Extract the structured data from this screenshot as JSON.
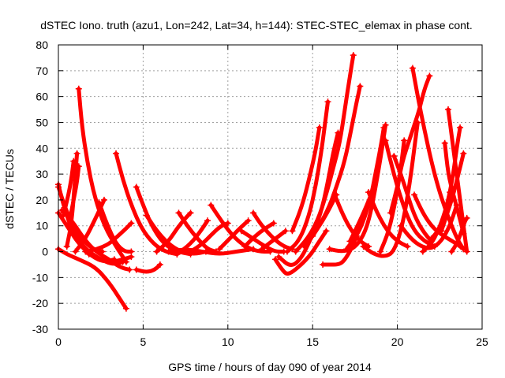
{
  "chart_data": {
    "type": "scatter",
    "title": "dSTEC Iono. truth (azu1, Lon=242, Lat=34, h=144): STEC-STEC_elemax in phase cont.",
    "xlabel": "GPS time / hours of day 090 of year 2014",
    "ylabel": "dSTEC  / TECUs",
    "xlim": [
      0,
      25
    ],
    "ylim": [
      -30,
      80
    ],
    "xticks": [
      0,
      5,
      10,
      15,
      20,
      25
    ],
    "yticks": [
      -30,
      -20,
      -10,
      0,
      10,
      20,
      30,
      40,
      50,
      60,
      70,
      80
    ],
    "grid": true,
    "series_color": "#ff0000",
    "marker": "plus",
    "arcs": [
      [
        [
          0.0,
          26
        ],
        [
          0.3,
          18
        ],
        [
          0.7,
          10
        ],
        [
          1.2,
          4
        ],
        [
          1.8,
          0
        ],
        [
          2.5,
          -3
        ],
        [
          3.2,
          -5
        ],
        [
          3.8,
          -4
        ]
      ],
      [
        [
          0.0,
          15
        ],
        [
          0.5,
          10
        ],
        [
          1.2,
          3
        ],
        [
          2.0,
          -2
        ],
        [
          2.7,
          -4
        ],
        [
          3.3,
          -3
        ]
      ],
      [
        [
          0.0,
          25
        ],
        [
          0.5,
          15
        ],
        [
          1.2,
          6
        ],
        [
          2.0,
          1
        ],
        [
          2.6,
          0
        ]
      ],
      [
        [
          0.0,
          1
        ],
        [
          0.5,
          -1
        ],
        [
          1.2,
          -3
        ],
        [
          2.2,
          -6
        ],
        [
          3.0,
          -12
        ],
        [
          3.6,
          -18
        ],
        [
          4.0,
          -22
        ]
      ],
      [
        [
          0.2,
          16
        ],
        [
          0.8,
          12
        ],
        [
          1.5,
          5
        ],
        [
          2.2,
          0
        ],
        [
          3.0,
          -3
        ],
        [
          3.6,
          -6
        ],
        [
          4.2,
          -7
        ]
      ],
      [
        [
          0.5,
          2
        ],
        [
          0.8,
          12
        ],
        [
          1.0,
          30
        ],
        [
          1.1,
          38
        ]
      ],
      [
        [
          0.3,
          14
        ],
        [
          0.7,
          25
        ],
        [
          0.9,
          35
        ]
      ],
      [
        [
          0.6,
          10
        ],
        [
          0.9,
          20
        ],
        [
          1.1,
          27
        ],
        [
          1.2,
          33
        ]
      ],
      [
        [
          1.2,
          63
        ],
        [
          1.4,
          48
        ],
        [
          1.7,
          35
        ],
        [
          2.1,
          22
        ],
        [
          2.7,
          10
        ],
        [
          3.4,
          2
        ],
        [
          4.0,
          -4
        ]
      ],
      [
        [
          1.0,
          0
        ],
        [
          1.6,
          5
        ],
        [
          2.2,
          13
        ],
        [
          2.7,
          20
        ]
      ],
      [
        [
          2.4,
          19
        ],
        [
          2.9,
          10
        ],
        [
          3.4,
          3
        ],
        [
          3.9,
          0
        ],
        [
          4.3,
          0
        ]
      ],
      [
        [
          1.6,
          0
        ],
        [
          2.3,
          1
        ],
        [
          3.0,
          3
        ],
        [
          3.5,
          6
        ],
        [
          4.0,
          9
        ],
        [
          4.3,
          11
        ]
      ],
      [
        [
          1.8,
          -1
        ],
        [
          2.5,
          -3
        ],
        [
          3.2,
          -4
        ],
        [
          3.8,
          -3
        ],
        [
          4.3,
          -2
        ]
      ],
      [
        [
          3.4,
          38
        ],
        [
          3.8,
          28
        ],
        [
          4.3,
          18
        ],
        [
          4.9,
          9
        ],
        [
          5.6,
          3
        ],
        [
          6.3,
          0
        ],
        [
          7.0,
          -1
        ]
      ],
      [
        [
          4.6,
          25
        ],
        [
          5.0,
          18
        ],
        [
          5.5,
          10
        ],
        [
          6.2,
          3
        ],
        [
          7.0,
          0
        ],
        [
          7.8,
          -1
        ]
      ],
      [
        [
          4.6,
          -7
        ],
        [
          5.2,
          -8
        ],
        [
          5.7,
          -7
        ],
        [
          6.0,
          -5
        ]
      ],
      [
        [
          5.2,
          14
        ],
        [
          5.8,
          8
        ],
        [
          6.5,
          3
        ],
        [
          7.2,
          0
        ],
        [
          8.0,
          -1
        ],
        [
          8.7,
          0
        ]
      ],
      [
        [
          5.8,
          0
        ],
        [
          6.5,
          4
        ],
        [
          7.0,
          9
        ],
        [
          7.5,
          13
        ],
        [
          7.8,
          15
        ]
      ],
      [
        [
          7.1,
          15
        ],
        [
          7.6,
          10
        ],
        [
          8.2,
          5
        ],
        [
          8.8,
          1
        ],
        [
          9.3,
          0
        ]
      ],
      [
        [
          7.0,
          -1
        ],
        [
          7.8,
          3
        ],
        [
          8.4,
          8
        ],
        [
          8.8,
          12
        ]
      ],
      [
        [
          6.5,
          0
        ],
        [
          7.5,
          1
        ],
        [
          8.5,
          0
        ],
        [
          9.5,
          -1
        ],
        [
          10.5,
          0
        ],
        [
          11.5,
          1
        ]
      ],
      [
        [
          7.8,
          0
        ],
        [
          8.5,
          3
        ],
        [
          9.1,
          7
        ],
        [
          9.6,
          10
        ],
        [
          10.0,
          11
        ]
      ],
      [
        [
          9.0,
          18
        ],
        [
          9.6,
          12
        ],
        [
          10.3,
          6
        ],
        [
          11.0,
          2
        ],
        [
          11.8,
          0
        ],
        [
          12.5,
          0
        ]
      ],
      [
        [
          9.5,
          1
        ],
        [
          10.1,
          5
        ],
        [
          10.7,
          9
        ],
        [
          11.2,
          12
        ]
      ],
      [
        [
          11.0,
          2
        ],
        [
          11.6,
          6
        ],
        [
          12.2,
          9
        ],
        [
          12.7,
          11
        ]
      ],
      [
        [
          11.5,
          15
        ],
        [
          12.0,
          10
        ],
        [
          12.7,
          5
        ],
        [
          13.3,
          2
        ],
        [
          13.8,
          1
        ]
      ],
      [
        [
          10.8,
          8
        ],
        [
          11.5,
          5
        ],
        [
          12.2,
          2
        ],
        [
          12.8,
          0
        ],
        [
          13.3,
          0
        ]
      ],
      [
        [
          12.0,
          1
        ],
        [
          12.6,
          4
        ],
        [
          13.0,
          6
        ],
        [
          13.4,
          8
        ]
      ],
      [
        [
          12.8,
          -3
        ],
        [
          13.2,
          -7
        ],
        [
          13.5,
          -9
        ],
        [
          14.0,
          -7
        ],
        [
          14.8,
          -2
        ],
        [
          15.3,
          3
        ],
        [
          15.8,
          8
        ]
      ],
      [
        [
          13.0,
          -2
        ],
        [
          13.7,
          -6
        ],
        [
          14.3,
          -3
        ],
        [
          14.9,
          5
        ],
        [
          15.5,
          15
        ],
        [
          15.9,
          27
        ],
        [
          16.2,
          38
        ],
        [
          16.5,
          46
        ]
      ],
      [
        [
          13.5,
          0
        ],
        [
          14.2,
          4
        ],
        [
          14.8,
          14
        ],
        [
          15.2,
          26
        ],
        [
          15.5,
          38
        ],
        [
          15.7,
          48
        ],
        [
          15.9,
          58
        ]
      ],
      [
        [
          13.8,
          8
        ],
        [
          14.4,
          18
        ],
        [
          14.9,
          31
        ],
        [
          15.2,
          40
        ],
        [
          15.4,
          48
        ]
      ],
      [
        [
          14.0,
          0
        ],
        [
          14.7,
          5
        ],
        [
          15.3,
          12
        ],
        [
          15.8,
          22
        ],
        [
          16.2,
          32
        ],
        [
          16.6,
          42
        ],
        [
          16.9,
          55
        ],
        [
          17.2,
          68
        ],
        [
          17.4,
          76
        ]
      ],
      [
        [
          14.5,
          2
        ],
        [
          15.2,
          8
        ],
        [
          15.9,
          16
        ],
        [
          16.4,
          25
        ],
        [
          16.9,
          35
        ],
        [
          17.3,
          48
        ],
        [
          17.6,
          58
        ],
        [
          17.8,
          64
        ]
      ],
      [
        [
          15.0,
          6
        ],
        [
          15.6,
          12
        ],
        [
          16.1,
          18
        ],
        [
          16.4,
          22
        ]
      ],
      [
        [
          16.3,
          22
        ],
        [
          16.8,
          14
        ],
        [
          17.3,
          8
        ],
        [
          17.8,
          4
        ],
        [
          18.3,
          2
        ]
      ],
      [
        [
          15.6,
          -5
        ],
        [
          16.0,
          -5
        ],
        [
          16.5,
          -5
        ],
        [
          16.8,
          -4
        ],
        [
          17.2,
          0
        ],
        [
          17.6,
          6
        ]
      ],
      [
        [
          16.0,
          1
        ],
        [
          16.7,
          0
        ],
        [
          17.4,
          1
        ],
        [
          18.0,
          6
        ],
        [
          18.4,
          14
        ],
        [
          18.8,
          28
        ],
        [
          19.1,
          40
        ],
        [
          19.3,
          49
        ]
      ],
      [
        [
          17.0,
          1
        ],
        [
          17.8,
          8
        ],
        [
          18.4,
          20
        ],
        [
          18.7,
          30
        ],
        [
          19.0,
          40
        ],
        [
          19.2,
          48
        ]
      ],
      [
        [
          17.2,
          4
        ],
        [
          17.8,
          12
        ],
        [
          18.2,
          18
        ],
        [
          18.5,
          23
        ]
      ],
      [
        [
          18.3,
          23
        ],
        [
          18.8,
          15
        ],
        [
          19.4,
          8
        ],
        [
          20.0,
          4
        ],
        [
          20.6,
          2
        ]
      ],
      [
        [
          18.0,
          2
        ],
        [
          18.6,
          -1
        ],
        [
          19.3,
          -2
        ],
        [
          19.8,
          0
        ],
        [
          20.3,
          10
        ],
        [
          20.7,
          25
        ],
        [
          21.0,
          40
        ],
        [
          21.2,
          50
        ]
      ],
      [
        [
          19.0,
          0
        ],
        [
          19.5,
          8
        ],
        [
          19.9,
          20
        ],
        [
          20.2,
          32
        ],
        [
          20.4,
          43
        ]
      ],
      [
        [
          19.3,
          43
        ],
        [
          19.6,
          35
        ],
        [
          20.0,
          25
        ],
        [
          20.5,
          15
        ],
        [
          21.0,
          8
        ],
        [
          21.6,
          4
        ],
        [
          22.2,
          2
        ]
      ],
      [
        [
          19.8,
          37
        ],
        [
          20.2,
          30
        ],
        [
          20.6,
          22
        ],
        [
          21.0,
          14
        ],
        [
          21.5,
          8
        ],
        [
          22.0,
          4
        ]
      ],
      [
        [
          19.6,
          15
        ],
        [
          20.0,
          25
        ],
        [
          20.3,
          35
        ],
        [
          20.7,
          43
        ],
        [
          21.0,
          49
        ],
        [
          21.3,
          55
        ],
        [
          21.6,
          63
        ],
        [
          21.9,
          68
        ]
      ],
      [
        [
          20.9,
          71
        ],
        [
          21.2,
          60
        ],
        [
          21.6,
          47
        ],
        [
          22.0,
          35
        ],
        [
          22.4,
          25
        ],
        [
          22.8,
          17
        ],
        [
          23.2,
          10
        ],
        [
          23.6,
          4
        ],
        [
          23.9,
          1
        ]
      ],
      [
        [
          20.2,
          10
        ],
        [
          20.8,
          5
        ],
        [
          21.4,
          2
        ],
        [
          22.0,
          1
        ],
        [
          22.6,
          4
        ],
        [
          23.1,
          10
        ],
        [
          23.5,
          18
        ]
      ],
      [
        [
          21.5,
          0
        ],
        [
          22.0,
          3
        ],
        [
          22.4,
          8
        ],
        [
          22.8,
          15
        ],
        [
          23.1,
          23
        ]
      ],
      [
        [
          21.0,
          22
        ],
        [
          21.5,
          15
        ],
        [
          22.0,
          10
        ],
        [
          22.5,
          7
        ],
        [
          23.0,
          5
        ],
        [
          23.5,
          3
        ],
        [
          23.9,
          1
        ]
      ],
      [
        [
          22.0,
          5
        ],
        [
          22.4,
          8
        ],
        [
          22.8,
          14
        ],
        [
          23.0,
          20
        ],
        [
          23.3,
          30
        ],
        [
          23.5,
          40
        ],
        [
          23.7,
          48
        ]
      ],
      [
        [
          23.0,
          55
        ],
        [
          23.2,
          45
        ],
        [
          23.4,
          35
        ],
        [
          23.6,
          25
        ],
        [
          23.8,
          15
        ],
        [
          24.0,
          5
        ],
        [
          24.1,
          0
        ]
      ],
      [
        [
          22.8,
          42
        ],
        [
          23.0,
          30
        ],
        [
          23.3,
          22
        ],
        [
          23.6,
          15
        ],
        [
          23.9,
          7
        ]
      ],
      [
        [
          23.2,
          0
        ],
        [
          23.5,
          3
        ],
        [
          23.8,
          8
        ],
        [
          24.0,
          12
        ],
        [
          24.1,
          13
        ]
      ],
      [
        [
          22.6,
          8
        ],
        [
          22.9,
          14
        ],
        [
          23.3,
          22
        ],
        [
          23.6,
          30
        ],
        [
          23.9,
          38
        ]
      ]
    ]
  }
}
